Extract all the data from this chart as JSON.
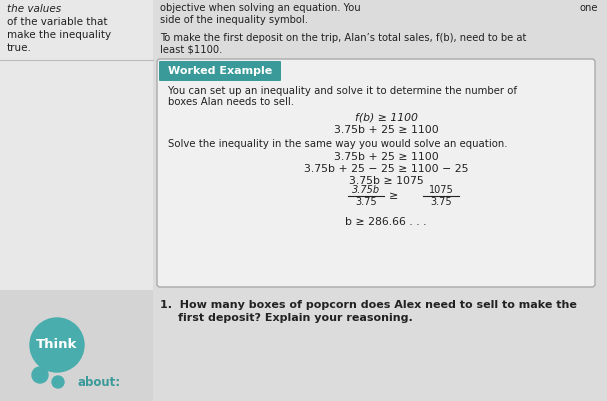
{
  "bg_color": "#d4d4d4",
  "left_panel_bg": "#e8e8e8",
  "box_bg": "#f2f2f2",
  "teal_color": "#3a9a9a",
  "think_teal": "#4aadad",
  "left_text_lines": [
    "the values",
    "of the variable that",
    "make the inequality",
    "true."
  ],
  "top_line1": "objective when solving an equation. You",
  "top_line2": "side of the inequality symbol.",
  "intro_line1": "To make the first deposit on the trip, Alan’s total sales, f(b), need to be at",
  "intro_line2": "least $1100.",
  "worked_title": "Worked Example",
  "body_line1": "You can set up an inequality and solve it to determine the number of",
  "body_line2": "boxes Alan needs to sell.",
  "eq1": "f(b) ≥ 1100",
  "eq2": "3.75b + 25 ≥ 1100",
  "solve_line": "Solve the inequality in the same way you would solve an equation.",
  "eq3": "3.75b + 25 ≥ 1100",
  "eq4": "3.75b + 25 − 25 ≥ 1100 − 25",
  "eq5": "3.75b ≥ 1075",
  "frac_lnum": "3.75b",
  "frac_lden": "3.75",
  "frac_gte": "≥",
  "frac_rnum": "1075",
  "frac_rden": "3.75",
  "eq7": "b ≥ 286.66 . . .",
  "q1_line1": "1.  How many boxes of popcorn does Alex need to sell to make the",
  "q1_line2": "first deposit? Explain your reasoning.",
  "think_text": "Think",
  "about_text": "about:",
  "font_color": "#222222",
  "teal_text": "#3a9a9a"
}
